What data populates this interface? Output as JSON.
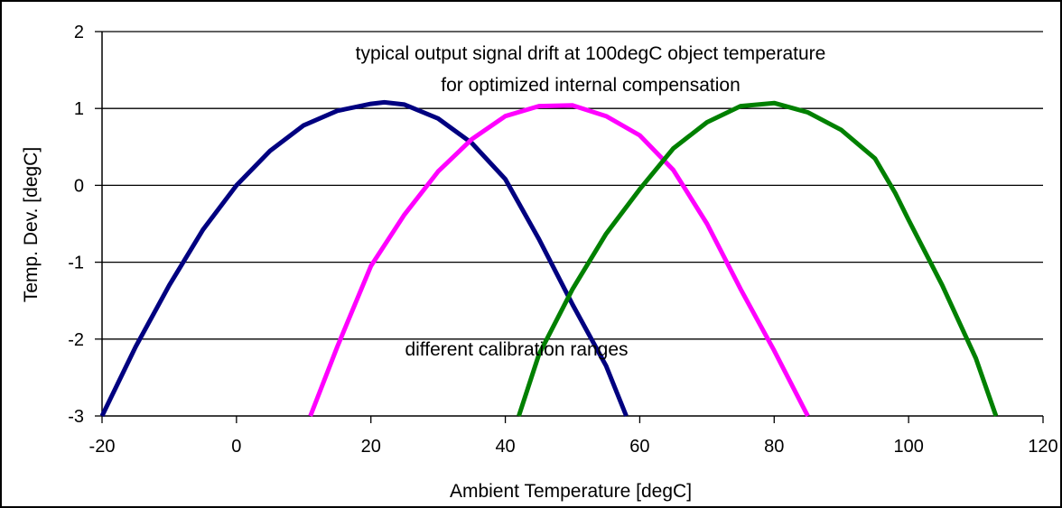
{
  "chart_data": {
    "type": "line",
    "title_lines": [
      "typical output signal drift at 100degC object temperature",
      "for optimized internal compensation"
    ],
    "annotation": "different calibration ranges",
    "xlabel": "Ambient Temperature [degC]",
    "ylabel": "Temp. Dev. [degC]",
    "xlim": [
      -20,
      120
    ],
    "ylim": [
      -3,
      2
    ],
    "x_ticks": [
      -20,
      0,
      20,
      40,
      60,
      80,
      100,
      120
    ],
    "y_ticks": [
      -3,
      -2,
      -1,
      0,
      1,
      2
    ],
    "grid": "horizontal",
    "legend": "none",
    "series": [
      {
        "color": "#000080",
        "points": [
          [
            -20,
            -3.0
          ],
          [
            -15,
            -2.1
          ],
          [
            -10,
            -1.3
          ],
          [
            -5,
            -0.58
          ],
          [
            0,
            0.0
          ],
          [
            5,
            0.45
          ],
          [
            10,
            0.78
          ],
          [
            15,
            0.97
          ],
          [
            20,
            1.06
          ],
          [
            22,
            1.08
          ],
          [
            25,
            1.05
          ],
          [
            30,
            0.87
          ],
          [
            35,
            0.55
          ],
          [
            40,
            0.08
          ],
          [
            45,
            -0.7
          ],
          [
            50,
            -1.55
          ],
          [
            55,
            -2.35
          ],
          [
            58,
            -3.0
          ]
        ]
      },
      {
        "color": "#ff00ff",
        "points": [
          [
            11,
            -3.0
          ],
          [
            15,
            -2.1
          ],
          [
            20,
            -1.05
          ],
          [
            25,
            -0.38
          ],
          [
            30,
            0.18
          ],
          [
            35,
            0.6
          ],
          [
            40,
            0.9
          ],
          [
            45,
            1.03
          ],
          [
            50,
            1.04
          ],
          [
            55,
            0.9
          ],
          [
            60,
            0.65
          ],
          [
            65,
            0.2
          ],
          [
            70,
            -0.5
          ],
          [
            75,
            -1.35
          ],
          [
            80,
            -2.15
          ],
          [
            85,
            -3.0
          ]
        ]
      },
      {
        "color": "#008000",
        "points": [
          [
            42,
            -3.0
          ],
          [
            45,
            -2.2
          ],
          [
            50,
            -1.35
          ],
          [
            55,
            -0.63
          ],
          [
            60,
            -0.05
          ],
          [
            65,
            0.48
          ],
          [
            70,
            0.82
          ],
          [
            75,
            1.03
          ],
          [
            80,
            1.07
          ],
          [
            85,
            0.95
          ],
          [
            90,
            0.72
          ],
          [
            95,
            0.35
          ],
          [
            98,
            -0.1
          ],
          [
            100,
            -0.45
          ],
          [
            105,
            -1.3
          ],
          [
            110,
            -2.25
          ],
          [
            113,
            -3.0
          ]
        ]
      }
    ]
  }
}
